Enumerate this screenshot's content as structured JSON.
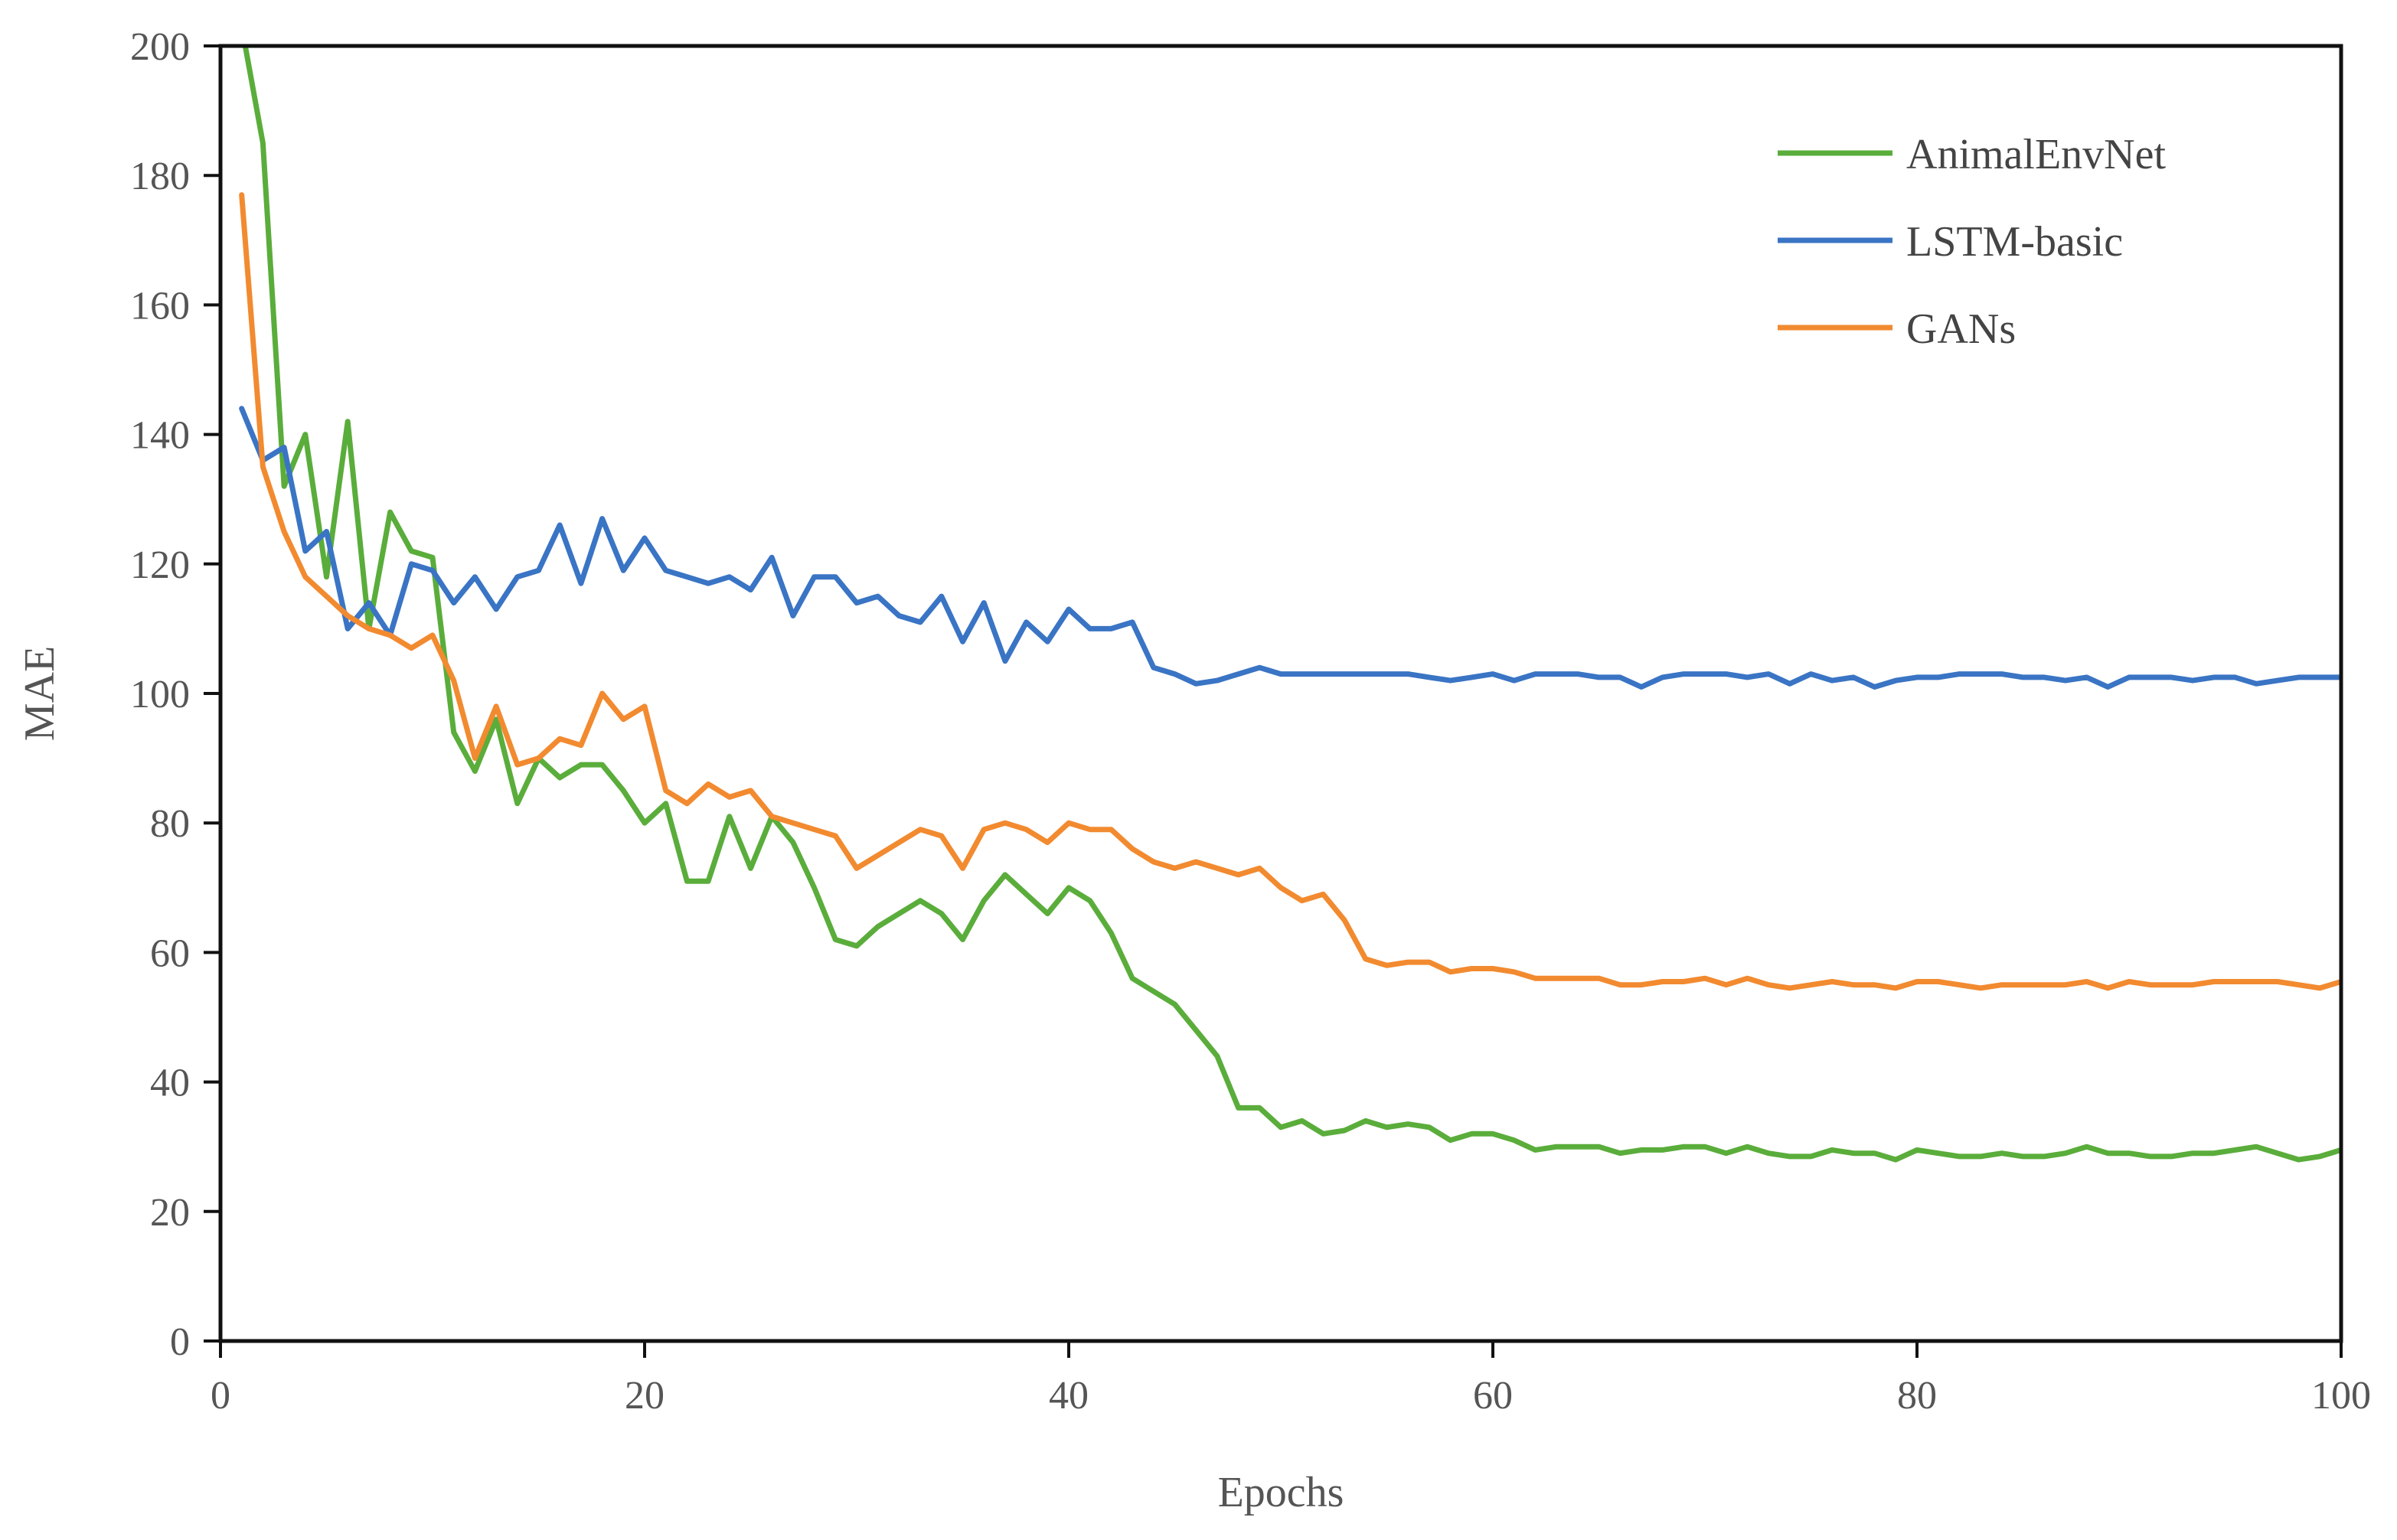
{
  "chart_data": {
    "type": "line",
    "title": "",
    "xlabel": "Epochs",
    "ylabel": "MAE",
    "xlim": [
      0,
      100
    ],
    "ylim": [
      0,
      200
    ],
    "x_ticks": [
      0,
      20,
      40,
      60,
      80,
      100
    ],
    "y_ticks": [
      0,
      20,
      40,
      60,
      80,
      100,
      120,
      140,
      160,
      180,
      200
    ],
    "grid": false,
    "legend_position": "top-right",
    "x": [
      1,
      2,
      3,
      4,
      5,
      6,
      7,
      8,
      9,
      10,
      11,
      12,
      13,
      14,
      15,
      16,
      17,
      18,
      19,
      20,
      21,
      22,
      23,
      24,
      25,
      26,
      27,
      28,
      29,
      30,
      31,
      32,
      33,
      34,
      35,
      36,
      37,
      38,
      39,
      40,
      41,
      42,
      43,
      44,
      45,
      46,
      47,
      48,
      49,
      50,
      51,
      52,
      53,
      54,
      55,
      56,
      57,
      58,
      59,
      60,
      61,
      62,
      63,
      64,
      65,
      66,
      67,
      68,
      69,
      70,
      71,
      72,
      73,
      74,
      75,
      76,
      77,
      78,
      79,
      80,
      81,
      82,
      83,
      84,
      85,
      86,
      87,
      88,
      89,
      90,
      91,
      92,
      93,
      94,
      95,
      96,
      97,
      98,
      99,
      100
    ],
    "series": [
      {
        "name": "AnimalEnvNet",
        "color": "#5aad3b",
        "values": [
          203,
          185,
          132,
          140,
          118,
          142,
          110,
          128,
          122,
          121,
          94,
          88,
          96,
          83,
          90,
          87,
          89,
          89,
          85,
          80,
          83,
          71,
          71,
          81,
          73,
          81,
          77,
          70,
          62,
          61,
          64,
          66,
          68,
          66,
          62,
          68,
          72,
          69,
          66,
          70,
          68,
          63,
          56,
          54,
          52,
          48,
          44,
          36,
          36,
          33,
          34,
          32,
          32.5,
          34,
          33,
          33.5,
          33,
          31,
          32,
          32,
          31,
          29.5,
          30,
          30,
          30,
          29,
          29.5,
          29.5,
          30,
          30,
          29,
          30,
          29,
          28.5,
          28.5,
          29.5,
          29,
          29,
          28,
          29.5,
          29,
          28.5,
          28.5,
          29,
          28.5,
          28.5,
          29,
          30,
          29,
          29,
          28.5,
          28.5,
          29,
          29,
          29.5,
          30,
          29,
          28,
          28.5,
          29.5
        ]
      },
      {
        "name": "LSTM-basic",
        "color": "#3a74c4",
        "values": [
          144,
          136,
          138,
          122,
          125,
          110,
          114,
          109,
          120,
          119,
          114,
          118,
          113,
          118,
          119,
          126,
          117,
          127,
          119,
          124,
          119,
          118,
          117,
          118,
          116,
          121,
          112,
          118,
          118,
          114,
          115,
          112,
          111,
          115,
          108,
          114,
          105,
          111,
          108,
          113,
          110,
          110,
          111,
          104,
          103,
          101.5,
          102,
          103,
          104,
          103,
          103,
          103,
          103,
          103,
          103,
          103,
          102.5,
          102,
          102.5,
          103,
          102,
          103,
          103,
          103,
          102.5,
          102.5,
          101,
          102.5,
          103,
          103,
          103,
          102.5,
          103,
          101.5,
          103,
          102,
          102.5,
          101,
          102,
          102.5,
          102.5,
          103,
          103,
          103,
          102.5,
          102.5,
          102,
          102.5,
          101,
          102.5,
          102.5,
          102.5,
          102,
          102.5,
          102.5,
          101.5,
          102,
          102.5,
          102.5,
          102.5
        ]
      },
      {
        "name": "GANs",
        "color": "#f28a30",
        "values": [
          177,
          135,
          125,
          118,
          115,
          112,
          110,
          109,
          107,
          109,
          102,
          90,
          98,
          89,
          90,
          93,
          92,
          100,
          96,
          98,
          85,
          83,
          86,
          84,
          85,
          81,
          80,
          79,
          78,
          73,
          75,
          77,
          79,
          78,
          73,
          79,
          80,
          79,
          77,
          80,
          79,
          79,
          76,
          74,
          73,
          74,
          73,
          72,
          73,
          70,
          68,
          69,
          65,
          59,
          58,
          58.5,
          58.5,
          57,
          57.5,
          57.5,
          57,
          56,
          56,
          56,
          56,
          55,
          55,
          55.5,
          55.5,
          56,
          55,
          56,
          55,
          54.5,
          55,
          55.5,
          55,
          55,
          54.5,
          55.5,
          55.5,
          55,
          54.5,
          55,
          55,
          55,
          55,
          55.5,
          54.5,
          55.5,
          55,
          55,
          55,
          55.5,
          55.5,
          55.5,
          55.5,
          55,
          54.5,
          55.5
        ]
      }
    ]
  }
}
